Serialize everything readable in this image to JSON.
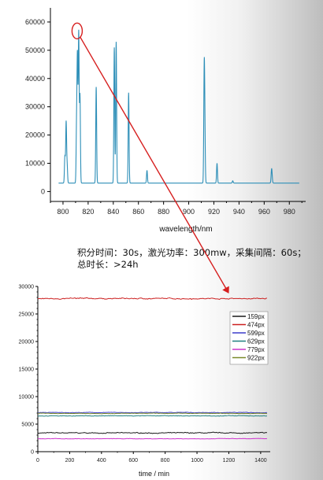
{
  "colors": {
    "spectrum": "#2e8fb8",
    "annotation": "#d61f1f",
    "axis": "#000000",
    "series": [
      "#1a1a1a",
      "#cc1f1f",
      "#3d3dcc",
      "#1f7f7f",
      "#cc33cc",
      "#7a8a2a"
    ]
  },
  "caption": {
    "line1": "积分时间：30s，激光功率：300mw，采集间隔：60s；",
    "line2": "总时长：>24h"
  },
  "chart_data": [
    {
      "type": "line",
      "title": "",
      "xlabel": "wavelength/nm",
      "ylabel": "",
      "xlim": [
        790,
        993
      ],
      "ylim": [
        -3500,
        65000
      ],
      "x_ticks": [
        800,
        820,
        840,
        860,
        880,
        900,
        920,
        940,
        960,
        980
      ],
      "y_ticks": [
        0,
        10000,
        20000,
        30000,
        40000,
        50000,
        60000
      ],
      "grid": false,
      "baseline": 3000,
      "peaks": [
        {
          "x": 801.5,
          "y": 12500
        },
        {
          "x": 802.5,
          "y": 24500
        },
        {
          "x": 803.3,
          "y": 9000
        },
        {
          "x": 810.8,
          "y": 23000
        },
        {
          "x": 811.5,
          "y": 46500
        },
        {
          "x": 812.5,
          "y": 56000
        },
        {
          "x": 813.5,
          "y": 34000
        },
        {
          "x": 826.4,
          "y": 37000
        },
        {
          "x": 840.8,
          "y": 51000
        },
        {
          "x": 842.3,
          "y": 53000
        },
        {
          "x": 852.2,
          "y": 35000
        },
        {
          "x": 866.8,
          "y": 7500
        },
        {
          "x": 912.3,
          "y": 40500
        },
        {
          "x": 912.8,
          "y": 19500
        },
        {
          "x": 922.5,
          "y": 10000
        },
        {
          "x": 935.0,
          "y": 3800
        },
        {
          "x": 965.8,
          "y": 6500
        },
        {
          "x": 966.2,
          "y": 5500
        }
      ],
      "annotation": {
        "circled_peak_x": 812.5,
        "circled_peak_y": 56000
      }
    },
    {
      "type": "line",
      "title": "",
      "xlabel": "time / min",
      "ylabel": "",
      "xlim": [
        0,
        1460
      ],
      "ylim": [
        0,
        30000
      ],
      "x_ticks": [
        0,
        200,
        400,
        600,
        800,
        1000,
        1200,
        1400
      ],
      "y_ticks": [
        0,
        5000,
        10000,
        15000,
        20000,
        25000,
        30000
      ],
      "grid": false,
      "legend_position": "top-right",
      "x_end": 1440,
      "series": [
        {
          "name": "159px",
          "level": 3400,
          "noise": 110
        },
        {
          "name": "474px",
          "level": 27800,
          "noise": 130
        },
        {
          "name": "599px",
          "level": 7100,
          "noise": 70
        },
        {
          "name": "629px",
          "level": 6500,
          "noise": 70
        },
        {
          "name": "779px",
          "level": 2350,
          "noise": 60
        },
        {
          "name": "922px",
          "level": 6950,
          "noise": 60
        }
      ]
    }
  ]
}
